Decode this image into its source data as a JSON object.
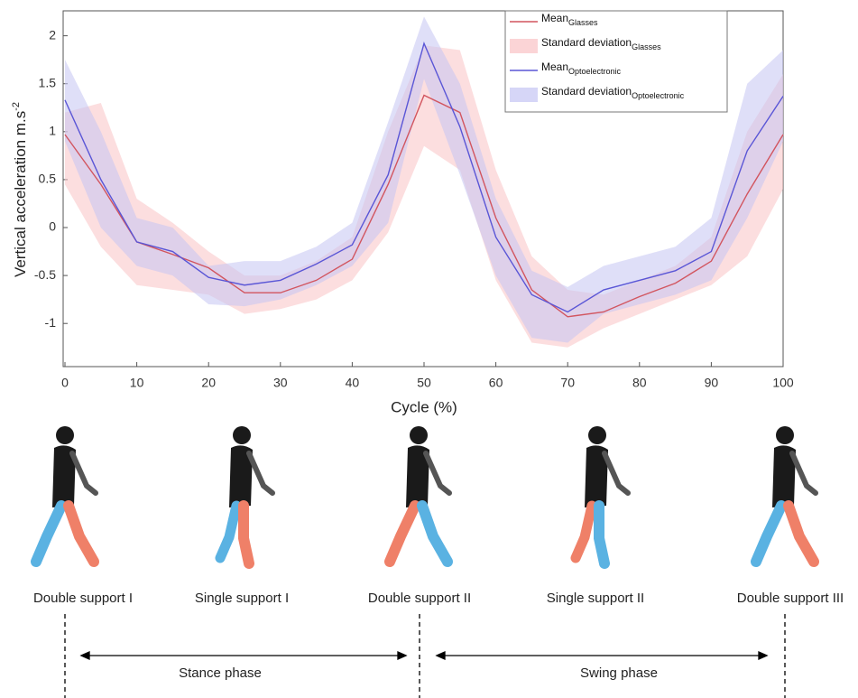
{
  "chart_data": {
    "type": "line-band",
    "ylabel": "Vertical acceleration m.s",
    "ylabel_sup": "-2",
    "xlabel": "Cycle (%)",
    "x": [
      0,
      5,
      10,
      15,
      20,
      25,
      30,
      35,
      40,
      45,
      50,
      55,
      60,
      65,
      70,
      75,
      80,
      85,
      90,
      95,
      100
    ],
    "xlim": [
      0,
      100
    ],
    "xticks": [
      0,
      10,
      20,
      30,
      40,
      50,
      60,
      70,
      80,
      90,
      100
    ],
    "ylim": [
      -1.45,
      2.26
    ],
    "yticks": [
      -1,
      -0.5,
      0,
      0.5,
      1,
      1.5,
      2
    ],
    "series": [
      {
        "name": "Mean",
        "subscript": "Glasses",
        "kind": "line",
        "color": "#d2555f",
        "values": [
          0.97,
          0.45,
          -0.15,
          -0.28,
          -0.42,
          -0.68,
          -0.68,
          -0.55,
          -0.33,
          0.45,
          1.38,
          1.2,
          0.1,
          -0.65,
          -0.93,
          -0.88,
          -0.72,
          -0.58,
          -0.35,
          0.35,
          0.97
        ]
      },
      {
        "name": "Standard deviation",
        "subscript": "Glasses",
        "kind": "band",
        "color": "#f9c2c4",
        "upper": [
          1.2,
          1.3,
          0.3,
          0.05,
          -0.25,
          -0.5,
          -0.5,
          -0.35,
          -0.1,
          1.0,
          1.9,
          1.85,
          0.6,
          -0.3,
          -0.65,
          -0.7,
          -0.55,
          -0.4,
          -0.1,
          1.0,
          1.6
        ],
        "lower": [
          0.45,
          -0.2,
          -0.6,
          -0.65,
          -0.7,
          -0.9,
          -0.85,
          -0.75,
          -0.55,
          -0.05,
          0.85,
          0.6,
          -0.55,
          -1.2,
          -1.25,
          -1.05,
          -0.9,
          -0.75,
          -0.6,
          -0.3,
          0.4
        ]
      },
      {
        "name": "Mean",
        "subscript": "Optoelectronic",
        "kind": "line",
        "color": "#5a56d6",
        "values": [
          1.33,
          0.5,
          -0.15,
          -0.25,
          -0.52,
          -0.6,
          -0.55,
          -0.38,
          -0.18,
          0.55,
          1.92,
          1.05,
          -0.1,
          -0.7,
          -0.88,
          -0.65,
          -0.55,
          -0.45,
          -0.25,
          0.8,
          1.37
        ]
      },
      {
        "name": "Standard deviation",
        "subscript": "Optoelectronic",
        "kind": "band",
        "color": "#c5c5f3",
        "upper": [
          1.75,
          1.0,
          0.1,
          0.0,
          -0.4,
          -0.35,
          -0.35,
          -0.2,
          0.05,
          1.1,
          2.2,
          1.5,
          0.3,
          -0.45,
          -0.62,
          -0.4,
          -0.3,
          -0.2,
          0.1,
          1.5,
          1.85
        ],
        "lower": [
          0.9,
          0.0,
          -0.4,
          -0.5,
          -0.8,
          -0.82,
          -0.75,
          -0.6,
          -0.4,
          0.05,
          1.55,
          0.55,
          -0.5,
          -1.15,
          -1.2,
          -0.9,
          -0.8,
          -0.7,
          -0.55,
          0.1,
          0.9
        ]
      }
    ]
  },
  "gait": {
    "stages": [
      "Double support I",
      "Single support I",
      "Double support II",
      "Single support II",
      "Double support III"
    ],
    "phases": [
      "Stance phase",
      "Swing phase"
    ]
  }
}
